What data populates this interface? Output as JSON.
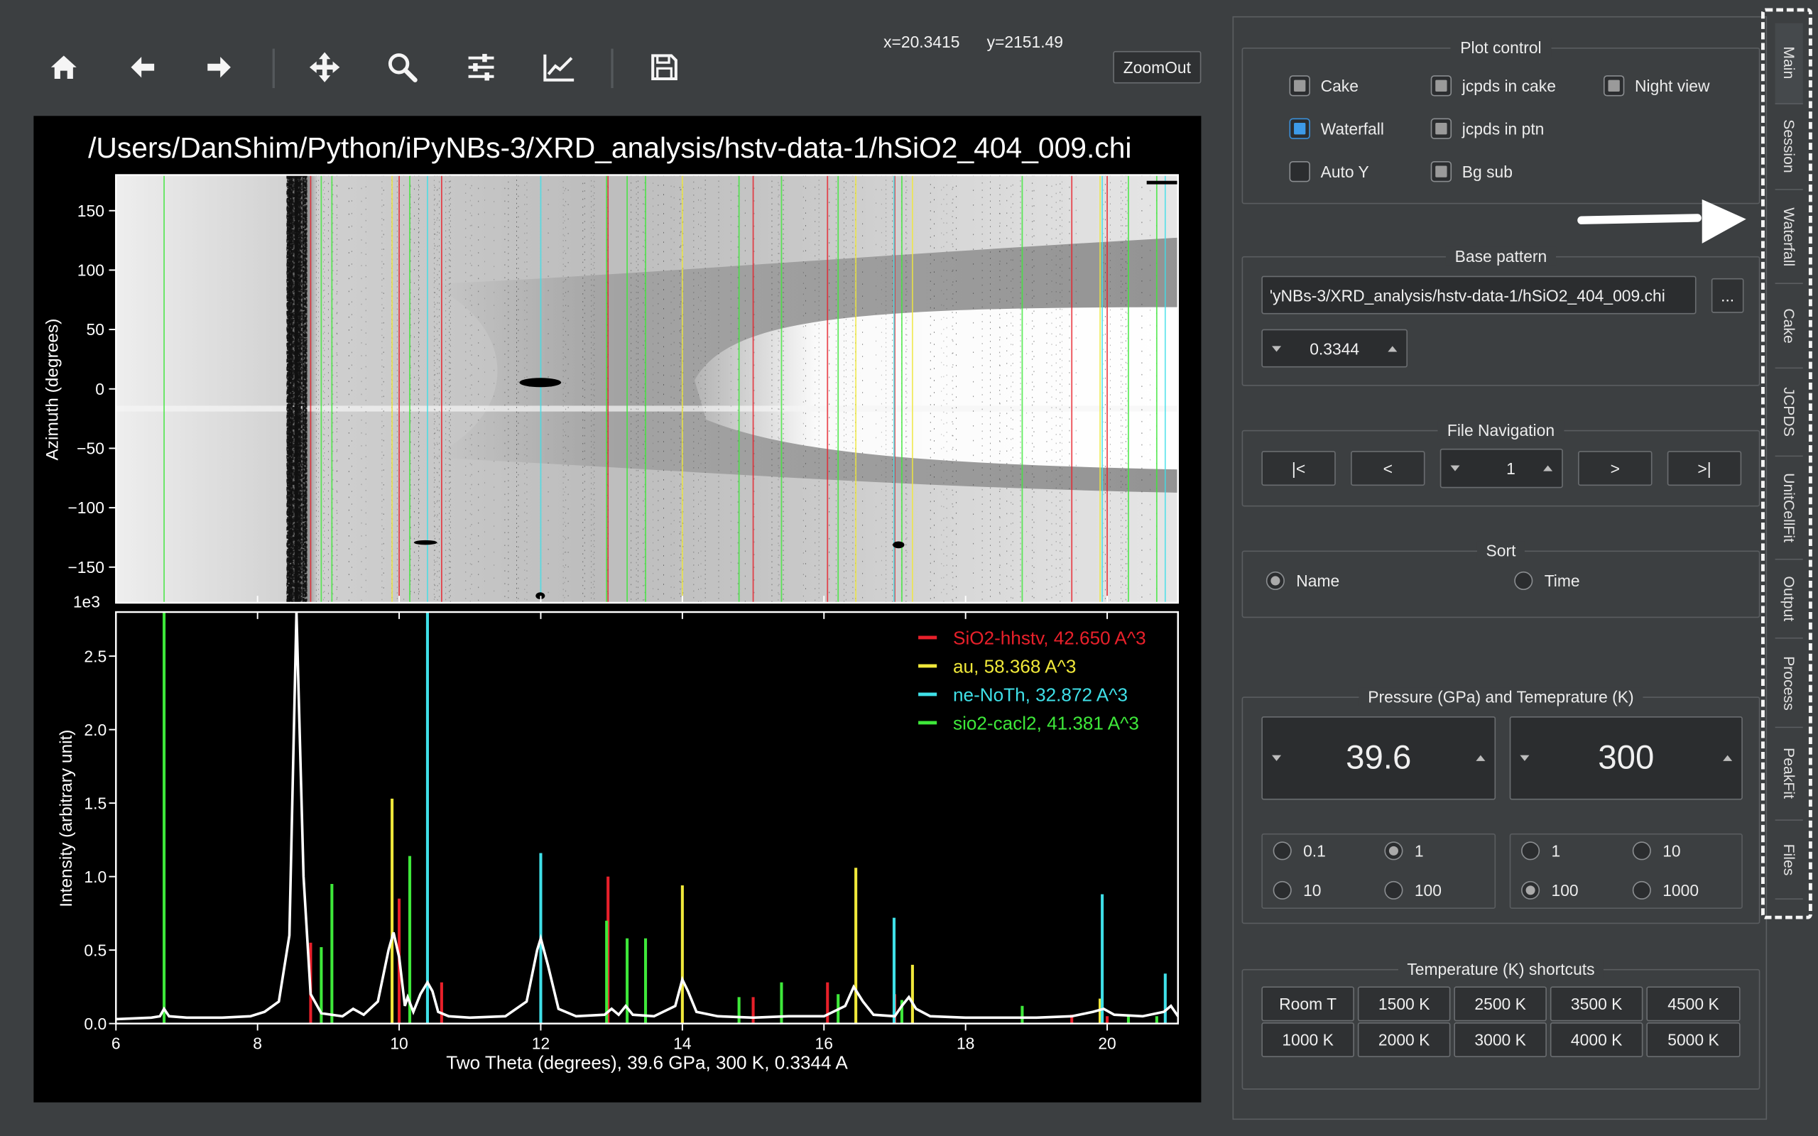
{
  "toolbar": {
    "icons": [
      "home-icon",
      "back-arrow-icon",
      "forward-arrow-icon",
      "pan-move-icon",
      "zoom-magnifier-icon",
      "configure-subplots-icon",
      "edit-axis-curves-icon",
      "save-floppy-icon"
    ],
    "coords": "x=20.3415      y=2151.49",
    "zoomout_label": "ZoomOut"
  },
  "figure": {
    "title": "/Users/DanShim/Python/iPyNBs-3/XRD_analysis/hstv-data-1/hSiO2_404_009.chi",
    "top_ylabel": "Azimuth (degrees)",
    "top_yticks": [
      "150",
      "100",
      "50",
      "0",
      "−50",
      "−100",
      "−150"
    ],
    "top_yticks_values": [
      150,
      100,
      50,
      0,
      -50,
      -100,
      -150
    ],
    "bottom_ylabel": "Intensity (arbitrary unit)",
    "bottom_xlabel": "Two Theta (degrees),  39.6 GPa,  300 K,  0.3344 A",
    "bottom_yticks": [
      "2.5",
      "2.0",
      "1.5",
      "1.0",
      "0.5",
      "0.0"
    ],
    "bottom_yticks_values": [
      2.5,
      2.0,
      1.5,
      1.0,
      0.5,
      0.0
    ],
    "bottom_yscale_label": "1e3",
    "xticks": [
      "6",
      "8",
      "10",
      "12",
      "14",
      "16",
      "18",
      "20"
    ],
    "xticks_values": [
      6,
      8,
      10,
      12,
      14,
      16,
      18,
      20
    ],
    "legend": [
      {
        "label": "SiO2-hhstv, 42.650 A^3",
        "color": "#e8202a"
      },
      {
        "label": "au, 58.368 A^3",
        "color": "#f0e83a"
      },
      {
        "label": "ne-NoTh, 32.872 A^3",
        "color": "#3fe0e8"
      },
      {
        "label": "sio2-cacl2, 41.381 A^3",
        "color": "#3ee83a"
      }
    ]
  },
  "chart_data": {
    "type": "line",
    "xlim": [
      6,
      21
    ],
    "ylim": [
      0,
      2.8
    ],
    "y_scale_factor": "1e3",
    "azimuth_lim": [
      -180,
      180
    ],
    "pattern": [
      [
        6,
        0.03
      ],
      [
        6.5,
        0.04
      ],
      [
        6.62,
        0.05
      ],
      [
        6.68,
        0.1
      ],
      [
        6.75,
        0.05
      ],
      [
        7,
        0.04
      ],
      [
        7.5,
        0.04
      ],
      [
        7.9,
        0.05
      ],
      [
        8.1,
        0.08
      ],
      [
        8.3,
        0.15
      ],
      [
        8.45,
        0.6
      ],
      [
        8.55,
        2.8
      ],
      [
        8.65,
        1.0
      ],
      [
        8.75,
        0.2
      ],
      [
        8.9,
        0.07
      ],
      [
        9.2,
        0.05
      ],
      [
        9.35,
        0.1
      ],
      [
        9.5,
        0.06
      ],
      [
        9.7,
        0.15
      ],
      [
        9.85,
        0.5
      ],
      [
        9.92,
        0.62
      ],
      [
        10.0,
        0.45
      ],
      [
        10.08,
        0.12
      ],
      [
        10.12,
        0.18
      ],
      [
        10.2,
        0.08
      ],
      [
        10.3,
        0.2
      ],
      [
        10.4,
        0.28
      ],
      [
        10.47,
        0.22
      ],
      [
        10.55,
        0.08
      ],
      [
        10.7,
        0.05
      ],
      [
        11,
        0.04
      ],
      [
        11.5,
        0.05
      ],
      [
        11.8,
        0.15
      ],
      [
        11.95,
        0.5
      ],
      [
        12.0,
        0.58
      ],
      [
        12.1,
        0.4
      ],
      [
        12.25,
        0.1
      ],
      [
        12.5,
        0.05
      ],
      [
        12.9,
        0.06
      ],
      [
        13.0,
        0.1
      ],
      [
        13.1,
        0.06
      ],
      [
        13.2,
        0.12
      ],
      [
        13.3,
        0.06
      ],
      [
        13.6,
        0.05
      ],
      [
        13.9,
        0.12
      ],
      [
        14.0,
        0.3
      ],
      [
        14.08,
        0.22
      ],
      [
        14.2,
        0.08
      ],
      [
        14.5,
        0.05
      ],
      [
        15,
        0.04
      ],
      [
        15.5,
        0.05
      ],
      [
        16,
        0.05
      ],
      [
        16.3,
        0.12
      ],
      [
        16.42,
        0.25
      ],
      [
        16.55,
        0.15
      ],
      [
        16.7,
        0.06
      ],
      [
        17,
        0.05
      ],
      [
        17.1,
        0.12
      ],
      [
        17.2,
        0.18
      ],
      [
        17.3,
        0.1
      ],
      [
        17.5,
        0.05
      ],
      [
        18,
        0.04
      ],
      [
        18.5,
        0.04
      ],
      [
        19,
        0.04
      ],
      [
        19.5,
        0.05
      ],
      [
        19.8,
        0.08
      ],
      [
        19.95,
        0.1
      ],
      [
        20.1,
        0.06
      ],
      [
        20.5,
        0.05
      ],
      [
        20.8,
        0.08
      ],
      [
        20.9,
        0.12
      ],
      [
        21,
        0.05
      ]
    ],
    "series": [
      {
        "name": "SiO2-hhstv, 42.650 A^3",
        "color": "#e8202a",
        "peaks": [
          [
            8.75,
            0.55
          ],
          [
            10.0,
            0.85
          ],
          [
            10.6,
            0.28
          ],
          [
            12.95,
            1.0
          ],
          [
            15.0,
            0.18
          ],
          [
            16.05,
            0.28
          ],
          [
            17.0,
            0.2
          ],
          [
            19.5,
            0.06
          ],
          [
            20.0,
            0.05
          ]
        ]
      },
      {
        "name": "au, 58.368 A^3",
        "color": "#f0e83a",
        "peaks": [
          [
            9.9,
            1.53
          ],
          [
            14.0,
            0.94
          ],
          [
            16.45,
            1.06
          ],
          [
            17.25,
            0.4
          ],
          [
            19.9,
            0.17
          ]
        ]
      },
      {
        "name": "ne-NoTh, 32.872 A^3",
        "color": "#3fe0e8",
        "peaks": [
          [
            10.4,
            2.8
          ],
          [
            12.0,
            1.16
          ],
          [
            16.99,
            0.72
          ],
          [
            19.93,
            0.88
          ],
          [
            20.82,
            0.34
          ]
        ]
      },
      {
        "name": "sio2-cacl2, 41.381 A^3",
        "color": "#3ee83a",
        "peaks": [
          [
            6.68,
            2.8
          ],
          [
            8.9,
            0.52
          ],
          [
            9.05,
            0.95
          ],
          [
            10.15,
            1.14
          ],
          [
            12.93,
            0.7
          ],
          [
            13.22,
            0.58
          ],
          [
            13.48,
            0.58
          ],
          [
            14.8,
            0.18
          ],
          [
            15.4,
            0.28
          ],
          [
            16.2,
            0.2
          ],
          [
            17.1,
            0.16
          ],
          [
            18.8,
            0.12
          ],
          [
            20.3,
            0.06
          ],
          [
            20.7,
            0.05
          ]
        ]
      }
    ]
  },
  "plot_control": {
    "title": "Plot control",
    "checkboxes": [
      {
        "label": "Cake",
        "state": "partial"
      },
      {
        "label": "jcpds in cake",
        "state": "partial"
      },
      {
        "label": "Night view",
        "state": "partial"
      },
      {
        "label": "Waterfall",
        "state": "checked"
      },
      {
        "label": "jcpds in ptn",
        "state": "partial"
      },
      {
        "label": "Auto Y",
        "state": "unchecked"
      },
      {
        "label": "Bg sub",
        "state": "partial"
      }
    ]
  },
  "base_pattern": {
    "title": "Base pattern",
    "path_value": "'yNBs-3/XRD_analysis/hstv-data-1/hSiO2_404_009.chi",
    "browse_label": "...",
    "wavelength": "0.3344"
  },
  "file_nav": {
    "title": "File Navigation",
    "first": "|<",
    "prev": "<",
    "index": "1",
    "next": ">",
    "last": ">|"
  },
  "sort": {
    "title": "Sort",
    "options": [
      {
        "label": "Name",
        "selected": true
      },
      {
        "label": "Time",
        "selected": false
      }
    ]
  },
  "pt": {
    "title": "Pressure (GPa) and Temeprature (K)",
    "pressure": "39.6",
    "temperature": "300",
    "p_steps": [
      {
        "label": "0.1",
        "selected": false
      },
      {
        "label": "1",
        "selected": true
      },
      {
        "label": "10",
        "selected": false
      },
      {
        "label": "100",
        "selected": false
      }
    ],
    "t_steps": [
      {
        "label": "1",
        "selected": false
      },
      {
        "label": "10",
        "selected": false
      },
      {
        "label": "100",
        "selected": true
      },
      {
        "label": "1000",
        "selected": false
      }
    ]
  },
  "shortcuts": {
    "title": "Temperature (K) shortcuts",
    "buttons": [
      "Room T",
      "1500 K",
      "2500 K",
      "3500 K",
      "4500 K",
      "1000 K",
      "2000 K",
      "3000 K",
      "4000 K",
      "5000 K"
    ]
  },
  "tabs": [
    "Main",
    "Session",
    "Waterfall",
    "Cake",
    "JCPDS",
    "UnitCellFit",
    "Output",
    "Process",
    "PeakFit",
    "Files"
  ]
}
